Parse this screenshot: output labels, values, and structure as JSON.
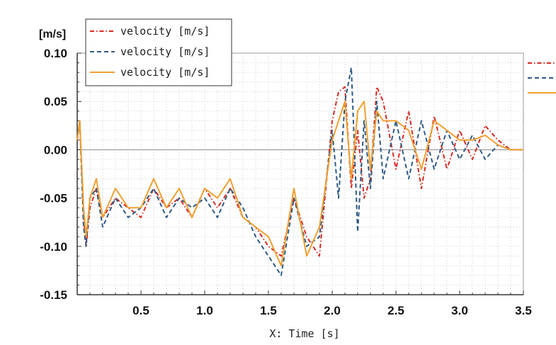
{
  "chart_data": {
    "type": "line",
    "ylabel_unit": "[m/s]",
    "xlabel": "X: Time [s]",
    "xlim": [
      0.0,
      3.5
    ],
    "ylim": [
      -0.15,
      0.1
    ],
    "x_ticks": [
      "0.5",
      "1.0",
      "1.5",
      "2.0",
      "2.5",
      "3.0",
      "3.5"
    ],
    "y_ticks": [
      "0.10",
      "0.05",
      "0.00",
      "-0.05",
      "-0.10",
      "-0.15"
    ],
    "grid": true,
    "legend_position": "top-left",
    "series": [
      {
        "name": "velocity [m/s]",
        "style": "dash-dot",
        "color": "#d62a22",
        "x": [
          0.0,
          0.02,
          0.05,
          0.07,
          0.1,
          0.15,
          0.2,
          0.3,
          0.4,
          0.5,
          0.6,
          0.7,
          0.8,
          0.9,
          1.0,
          1.1,
          1.2,
          1.3,
          1.4,
          1.5,
          1.6,
          1.7,
          1.8,
          1.9,
          2.0,
          2.05,
          2.1,
          2.15,
          2.2,
          2.25,
          2.3,
          2.35,
          2.4,
          2.5,
          2.6,
          2.7,
          2.8,
          2.9,
          3.0,
          3.1,
          3.2,
          3.3,
          3.4,
          3.5
        ],
        "y": [
          0.01,
          0.03,
          -0.07,
          -0.1,
          -0.06,
          -0.04,
          -0.07,
          -0.05,
          -0.06,
          -0.07,
          -0.04,
          -0.06,
          -0.05,
          -0.07,
          -0.04,
          -0.06,
          -0.04,
          -0.07,
          -0.08,
          -0.1,
          -0.11,
          -0.05,
          -0.09,
          -0.11,
          0.03,
          0.06,
          0.065,
          -0.04,
          0.02,
          -0.05,
          -0.03,
          0.065,
          0.05,
          -0.02,
          0.04,
          -0.04,
          0.035,
          -0.02,
          0.02,
          -0.01,
          0.025,
          0.01,
          0.0,
          0.0
        ]
      },
      {
        "name": "velocity [m/s]",
        "style": "dashed",
        "color": "#2f5a86",
        "x": [
          0.0,
          0.02,
          0.05,
          0.07,
          0.1,
          0.15,
          0.2,
          0.3,
          0.4,
          0.5,
          0.6,
          0.7,
          0.8,
          0.9,
          1.0,
          1.1,
          1.2,
          1.3,
          1.4,
          1.5,
          1.6,
          1.7,
          1.8,
          1.9,
          2.0,
          2.05,
          2.1,
          2.15,
          2.2,
          2.25,
          2.3,
          2.35,
          2.4,
          2.5,
          2.6,
          2.7,
          2.8,
          2.9,
          3.0,
          3.1,
          3.2,
          3.3,
          3.4,
          3.5
        ],
        "y": [
          0.01,
          0.03,
          -0.08,
          -0.1,
          -0.05,
          -0.04,
          -0.08,
          -0.05,
          -0.07,
          -0.06,
          -0.04,
          -0.07,
          -0.05,
          -0.06,
          -0.05,
          -0.07,
          -0.04,
          -0.06,
          -0.09,
          -0.11,
          -0.13,
          -0.05,
          -0.1,
          -0.09,
          0.02,
          -0.05,
          0.05,
          0.085,
          -0.085,
          0.03,
          -0.04,
          0.05,
          -0.03,
          0.03,
          -0.03,
          0.03,
          -0.02,
          0.02,
          -0.01,
          0.015,
          -0.01,
          0.005,
          0.0,
          0.0
        ]
      },
      {
        "name": "velocity [m/s]",
        "style": "solid",
        "color": "#f0a030",
        "x": [
          0.0,
          0.02,
          0.05,
          0.07,
          0.1,
          0.15,
          0.2,
          0.3,
          0.4,
          0.5,
          0.6,
          0.7,
          0.8,
          0.9,
          1.0,
          1.1,
          1.2,
          1.3,
          1.4,
          1.5,
          1.6,
          1.7,
          1.8,
          1.9,
          2.0,
          2.05,
          2.1,
          2.15,
          2.2,
          2.25,
          2.3,
          2.35,
          2.4,
          2.5,
          2.6,
          2.7,
          2.8,
          2.9,
          3.0,
          3.1,
          3.2,
          3.3,
          3.4,
          3.5
        ],
        "y": [
          0.01,
          0.03,
          -0.06,
          -0.09,
          -0.05,
          -0.03,
          -0.07,
          -0.04,
          -0.06,
          -0.06,
          -0.03,
          -0.06,
          -0.04,
          -0.07,
          -0.04,
          -0.05,
          -0.03,
          -0.07,
          -0.08,
          -0.09,
          -0.12,
          -0.04,
          -0.11,
          -0.08,
          0.01,
          0.03,
          0.05,
          -0.03,
          0.04,
          0.05,
          -0.02,
          0.04,
          0.03,
          0.03,
          0.02,
          -0.02,
          0.03,
          0.02,
          0.01,
          0.01,
          0.015,
          0.005,
          0.0,
          0.0
        ]
      }
    ]
  }
}
